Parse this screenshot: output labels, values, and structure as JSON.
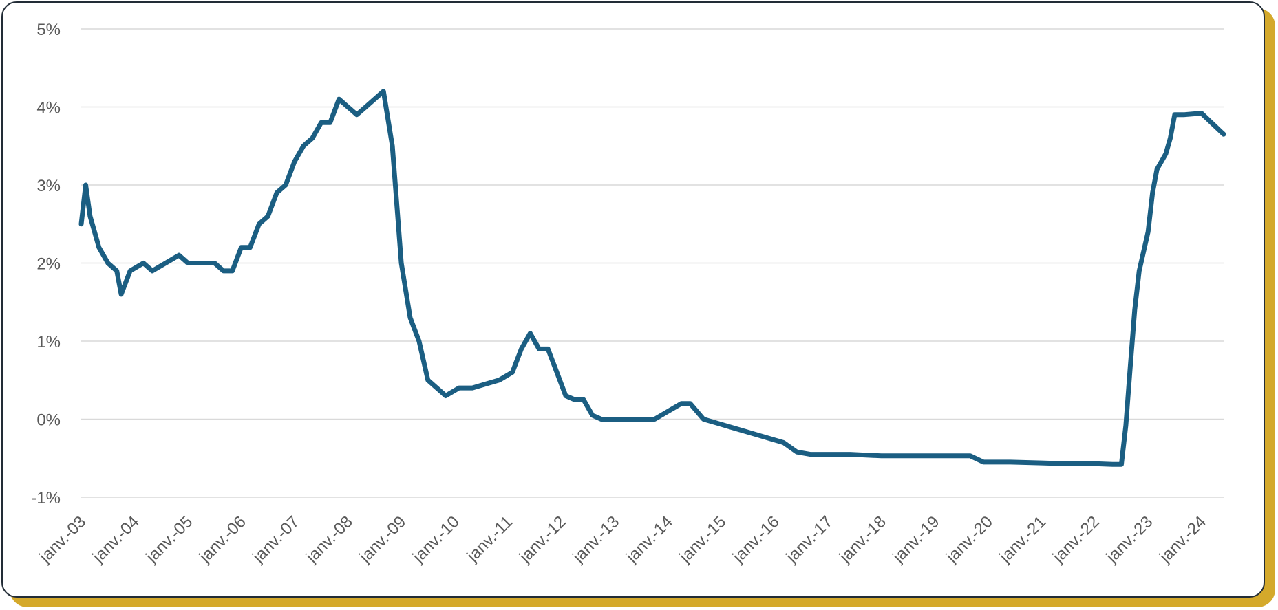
{
  "chart_data": {
    "type": "line",
    "title": "",
    "xlabel": "",
    "ylabel": "",
    "y_ticks": [
      "5%",
      "4%",
      "3%",
      "2%",
      "1%",
      "0%",
      "-1%"
    ],
    "x_ticks": [
      "janv.-03",
      "janv.-04",
      "janv.-05",
      "janv.-06",
      "janv.-07",
      "janv.-08",
      "janv.-09",
      "janv.-10",
      "janv.-11",
      "janv.-12",
      "janv.-13",
      "janv.-14",
      "janv.-15",
      "janv.-16",
      "janv.-17",
      "janv.-18",
      "janv.-19",
      "janv.-20",
      "janv.-21",
      "janv.-22",
      "janv.-23",
      "janv.-24"
    ],
    "ylim": [
      -1,
      5
    ],
    "xlim": [
      "2003-01",
      "2024-06"
    ],
    "grid": true,
    "line_color": "#1b5e82",
    "series": [
      {
        "name": "",
        "x": [
          "2003-01",
          "2003-02",
          "2003-03",
          "2003-04",
          "2003-05",
          "2003-07",
          "2003-09",
          "2003-10",
          "2003-12",
          "2004-03",
          "2004-05",
          "2004-08",
          "2004-11",
          "2005-01",
          "2005-04",
          "2005-07",
          "2005-09",
          "2005-11",
          "2006-01",
          "2006-03",
          "2006-05",
          "2006-07",
          "2006-09",
          "2006-11",
          "2007-01",
          "2007-03",
          "2007-05",
          "2007-07",
          "2007-09",
          "2007-11",
          "2008-01",
          "2008-03",
          "2008-05",
          "2008-07",
          "2008-09",
          "2008-11",
          "2009-01",
          "2009-03",
          "2009-05",
          "2009-07",
          "2009-09",
          "2009-11",
          "2010-02",
          "2010-05",
          "2010-08",
          "2010-11",
          "2011-02",
          "2011-04",
          "2011-06",
          "2011-08",
          "2011-10",
          "2011-12",
          "2012-02",
          "2012-04",
          "2012-06",
          "2012-08",
          "2012-10",
          "2013-01",
          "2013-04",
          "2013-07",
          "2013-10",
          "2014-01",
          "2014-04",
          "2014-06",
          "2014-09",
          "2014-12",
          "2015-03",
          "2015-06",
          "2015-09",
          "2015-12",
          "2016-03",
          "2016-06",
          "2016-09",
          "2017-01",
          "2017-06",
          "2018-01",
          "2018-06",
          "2019-01",
          "2019-06",
          "2019-09",
          "2019-12",
          "2020-03",
          "2020-06",
          "2021-01",
          "2021-06",
          "2022-01",
          "2022-05",
          "2022-07",
          "2022-08",
          "2022-09",
          "2022-10",
          "2022-11",
          "2023-01",
          "2023-02",
          "2023-03",
          "2023-05",
          "2023-06",
          "2023-07",
          "2023-09",
          "2024-01",
          "2024-06"
        ],
        "values": [
          2.5,
          3.0,
          2.6,
          2.4,
          2.2,
          2.0,
          1.9,
          1.6,
          1.9,
          2.0,
          1.9,
          2.0,
          2.1,
          2.0,
          2.0,
          2.0,
          1.9,
          1.9,
          2.2,
          2.2,
          2.5,
          2.6,
          2.9,
          3.0,
          3.3,
          3.5,
          3.6,
          3.8,
          3.8,
          4.1,
          4.0,
          3.9,
          4.0,
          4.1,
          4.2,
          3.5,
          2.0,
          1.3,
          1.0,
          0.5,
          0.4,
          0.3,
          0.4,
          0.4,
          0.45,
          0.5,
          0.6,
          0.9,
          1.1,
          0.9,
          0.9,
          0.6,
          0.3,
          0.25,
          0.25,
          0.05,
          0.0,
          0.0,
          0.0,
          0.0,
          0.0,
          0.1,
          0.2,
          0.2,
          0.0,
          -0.05,
          -0.1,
          -0.15,
          -0.2,
          -0.25,
          -0.3,
          -0.42,
          -0.45,
          -0.45,
          -0.45,
          -0.47,
          -0.47,
          -0.47,
          -0.47,
          -0.47,
          -0.55,
          -0.55,
          -0.55,
          -0.56,
          -0.57,
          -0.57,
          -0.58,
          -0.58,
          -0.08,
          0.68,
          1.4,
          1.9,
          2.4,
          2.9,
          3.2,
          3.4,
          3.6,
          3.9,
          3.9,
          3.92,
          3.65
        ]
      }
    ]
  }
}
